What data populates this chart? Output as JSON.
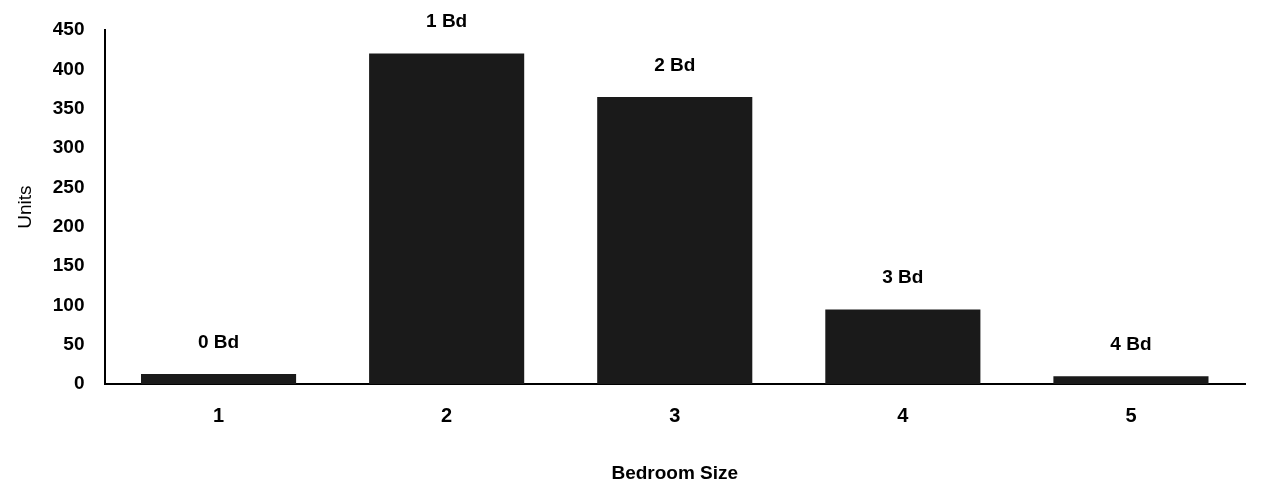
{
  "chart_data": {
    "type": "bar",
    "xlabel": "Bedroom Size",
    "ylabel": "Units",
    "categories": [
      "1",
      "2",
      "3",
      "4",
      "5"
    ],
    "values": [
      13,
      420,
      365,
      95,
      10
    ],
    "color": "#1a1a1a",
    "ylim": [
      0,
      450
    ],
    "yticks": [
      0,
      50,
      100,
      150,
      200,
      250,
      300,
      350,
      400,
      450
    ],
    "grid": false,
    "legend": false,
    "annotations": [
      {
        "text": "0 Bd",
        "x": "1",
        "y": 13
      },
      {
        "text": "1 Bd",
        "x": "2",
        "y": 420
      },
      {
        "text": "2 Bd",
        "x": "3",
        "y": 365
      },
      {
        "text": "3 Bd",
        "x": "4",
        "y": 95
      },
      {
        "text": "4 Bd",
        "x": "5",
        "y": 10
      }
    ]
  }
}
